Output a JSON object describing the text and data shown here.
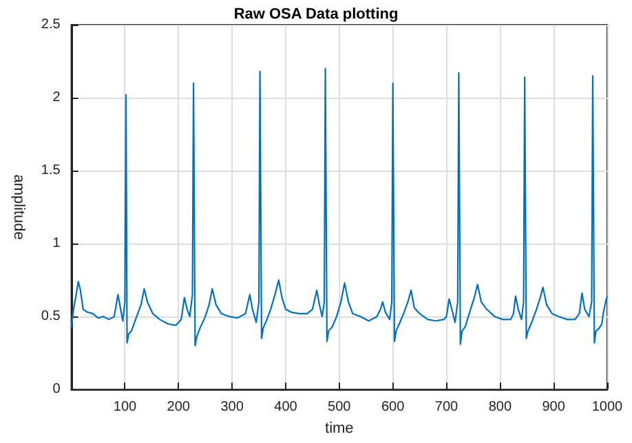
{
  "chart_data": {
    "type": "line",
    "title": "Raw OSA Data plotting",
    "xlabel": "time",
    "ylabel": "amplitude",
    "x": [
      0,
      4,
      9,
      13,
      17,
      22,
      30,
      40,
      50,
      60,
      70,
      80,
      87,
      92,
      96,
      100,
      102,
      104,
      107,
      112,
      122,
      130,
      136,
      142,
      152,
      165,
      180,
      195,
      205,
      211,
      216,
      221,
      226,
      228,
      231,
      234,
      240,
      250,
      257,
      263,
      270,
      280,
      295,
      310,
      325,
      333,
      338,
      345,
      350,
      352,
      355,
      358,
      365,
      372,
      380,
      387,
      393,
      400,
      410,
      425,
      440,
      450,
      458,
      463,
      468,
      472,
      474,
      477,
      480,
      487,
      495,
      503,
      510,
      517,
      525,
      540,
      555,
      570,
      577,
      581,
      586,
      594,
      598,
      600,
      603,
      606,
      612,
      620,
      628,
      634,
      640,
      650,
      665,
      680,
      695,
      700,
      705,
      710,
      716,
      721,
      723,
      726,
      729,
      735,
      745,
      752,
      758,
      765,
      775,
      790,
      805,
      820,
      825,
      829,
      834,
      840,
      844,
      846,
      849,
      852,
      858,
      868,
      875,
      880,
      887,
      897,
      910,
      925,
      940,
      948,
      953,
      958,
      966,
      971,
      973,
      976,
      979,
      985,
      990,
      993,
      997,
      1000
    ],
    "series": [
      {
        "color": "#0072bd",
        "values": [
          0.42,
          0.55,
          0.65,
          0.74,
          0.68,
          0.55,
          0.53,
          0.52,
          0.49,
          0.5,
          0.48,
          0.5,
          0.65,
          0.55,
          0.47,
          0.6,
          2.02,
          0.32,
          0.38,
          0.4,
          0.5,
          0.58,
          0.69,
          0.6,
          0.52,
          0.48,
          0.45,
          0.44,
          0.48,
          0.63,
          0.55,
          0.5,
          0.65,
          2.1,
          0.3,
          0.36,
          0.42,
          0.5,
          0.58,
          0.69,
          0.58,
          0.52,
          0.5,
          0.49,
          0.52,
          0.65,
          0.55,
          0.46,
          0.6,
          2.18,
          0.35,
          0.42,
          0.48,
          0.55,
          0.65,
          0.75,
          0.63,
          0.55,
          0.53,
          0.52,
          0.52,
          0.55,
          0.68,
          0.58,
          0.5,
          0.6,
          2.2,
          0.33,
          0.4,
          0.43,
          0.5,
          0.6,
          0.73,
          0.6,
          0.52,
          0.5,
          0.47,
          0.5,
          0.55,
          0.6,
          0.53,
          0.48,
          0.6,
          2.1,
          0.33,
          0.4,
          0.45,
          0.52,
          0.6,
          0.68,
          0.56,
          0.52,
          0.48,
          0.47,
          0.48,
          0.5,
          0.62,
          0.55,
          0.46,
          0.6,
          2.17,
          0.31,
          0.4,
          0.43,
          0.55,
          0.63,
          0.72,
          0.6,
          0.55,
          0.5,
          0.48,
          0.48,
          0.52,
          0.64,
          0.55,
          0.48,
          0.6,
          2.14,
          0.35,
          0.4,
          0.45,
          0.55,
          0.63,
          0.7,
          0.58,
          0.52,
          0.5,
          0.48,
          0.48,
          0.52,
          0.66,
          0.55,
          0.5,
          0.6,
          2.15,
          0.32,
          0.4,
          0.42,
          0.45,
          0.53,
          0.6,
          0.64
        ]
      }
    ],
    "xlim": [
      0,
      1000
    ],
    "xticks": [
      100,
      200,
      300,
      400,
      500,
      600,
      700,
      800,
      900,
      1000
    ],
    "ylim": [
      0,
      2.5
    ],
    "yticks": [
      0,
      0.5,
      1,
      1.5,
      2,
      2.5
    ],
    "grid": true,
    "marker": "none",
    "line_style": "solid"
  }
}
